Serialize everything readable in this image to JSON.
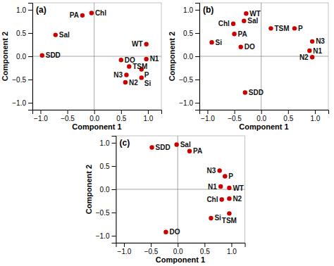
{
  "chart_data": [
    {
      "type": "scatter",
      "title": "(a)",
      "xlabel": "Component 1",
      "ylabel": "Component 2",
      "color": "#CC0000",
      "labels": [
        "Chl",
        "PA",
        "Sal",
        "SDD",
        "DO",
        "TSM",
        "P",
        "N3",
        "N2",
        "Si",
        "N1",
        "WT"
      ],
      "x": [
        -0.05,
        -0.22,
        -0.72,
        -0.97,
        0.5,
        0.65,
        0.88,
        0.6,
        0.58,
        0.88,
        0.97,
        0.97
      ],
      "values": [
        0.93,
        0.88,
        0.46,
        0.02,
        -0.08,
        -0.22,
        -0.28,
        -0.4,
        -0.56,
        -0.46,
        -0.06,
        0.26
      ],
      "xlim": [
        -1.15,
        1.25
      ],
      "ylim": [
        -1.15,
        1.15
      ],
      "xticks": [
        {
          "value": -1.0,
          "label": "−1.0"
        },
        {
          "value": -0.5,
          "label": "−0.5"
        },
        {
          "value": 0.0,
          "label": "0.0"
        },
        0.5,
        {
          "value": 1.0,
          "label": "1.0"
        }
      ],
      "yticks": [
        {
          "value": -1.0,
          "label": "−1.0"
        },
        {
          "value": -0.5,
          "label": "−0.5"
        },
        {
          "value": 0.0,
          "label": "0.0"
        },
        0.5,
        {
          "value": 1.0,
          "label": "1.0"
        }
      ]
    },
    {
      "type": "scatter",
      "title": "(b)",
      "xlabel": "Component 1",
      "ylabel": "Component 2",
      "color": "#CC0000",
      "labels": [
        "WT",
        "Chl",
        "Sal",
        "PA",
        "DO",
        "Si",
        "TSM",
        "P",
        "N3",
        "N1",
        "N2",
        "SDD"
      ],
      "x": [
        -0.28,
        -0.52,
        -0.32,
        -0.5,
        -0.38,
        -0.92,
        0.18,
        0.62,
        0.95,
        0.9,
        0.95,
        -0.3
      ],
      "values": [
        0.92,
        0.7,
        0.76,
        0.48,
        0.2,
        0.3,
        0.6,
        0.6,
        0.32,
        0.12,
        -0.02,
        -0.78
      ],
      "xlim": [
        -1.15,
        1.25
      ],
      "ylim": [
        -1.15,
        1.15
      ],
      "xticks": [
        {
          "value": -1.0,
          "label": "−1.0"
        },
        {
          "value": -0.5,
          "label": "−0.5"
        },
        {
          "value": 0.0,
          "label": "0.0"
        },
        0.5,
        {
          "value": 1.0,
          "label": "1.0"
        }
      ],
      "yticks": [
        {
          "value": -1.0,
          "label": "−1.0"
        },
        {
          "value": -0.5,
          "label": "−0.5"
        },
        {
          "value": 0.0,
          "label": "0.0"
        },
        0.5,
        {
          "value": 1.0,
          "label": "1.0"
        }
      ]
    },
    {
      "type": "scatter",
      "title": "(c)",
      "xlabel": "Component 1",
      "ylabel": "Component 2",
      "color": "#CC0000",
      "labels": [
        "SDD",
        "Sal",
        "PA",
        "DO",
        "N3",
        "P",
        "N1",
        "WT",
        "Chl",
        "N2",
        "Si",
        "TSM"
      ],
      "x": [
        -0.48,
        -0.02,
        0.22,
        -0.22,
        0.78,
        0.88,
        0.8,
        0.96,
        0.82,
        0.96,
        0.62,
        0.96
      ],
      "values": [
        0.9,
        0.96,
        0.82,
        -0.92,
        0.4,
        0.28,
        0.06,
        0.03,
        -0.22,
        -0.2,
        -0.62,
        -0.52
      ],
      "xlim": [
        -1.15,
        1.25
      ],
      "ylim": [
        -1.15,
        1.15
      ],
      "xticks": [
        {
          "value": -1.0,
          "label": "−1.0"
        },
        {
          "value": -0.5,
          "label": "−0.5"
        },
        {
          "value": 0.0,
          "label": "0.0"
        },
        0.5,
        {
          "value": 1.0,
          "label": "1.0"
        }
      ],
      "yticks": [
        {
          "value": -1.0,
          "label": "−1.0"
        },
        {
          "value": -0.5,
          "label": "−0.5"
        },
        {
          "value": 0.0,
          "label": "0.0"
        },
        0.5,
        {
          "value": 1.0,
          "label": "1.0"
        }
      ]
    }
  ]
}
